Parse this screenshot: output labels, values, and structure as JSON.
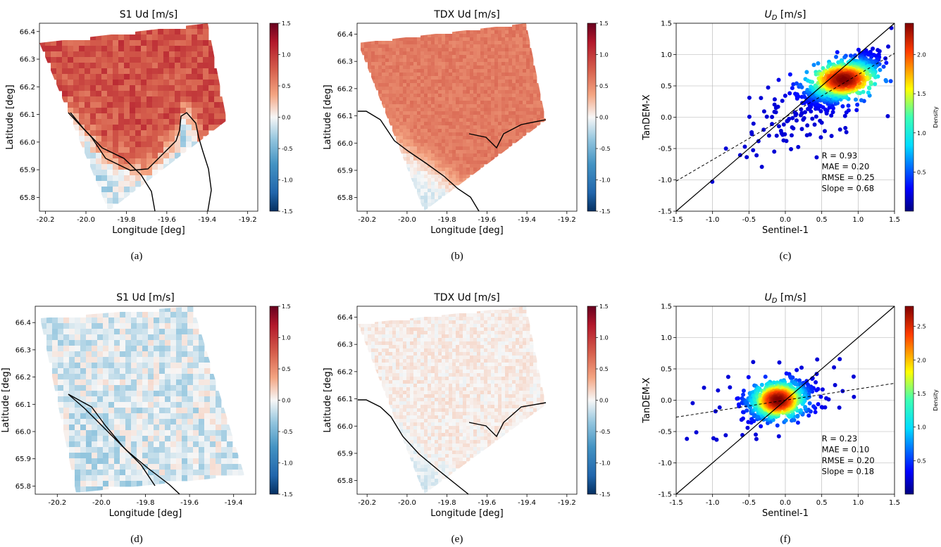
{
  "figure": {
    "captions": [
      "(a)",
      "(b)",
      "(c)",
      "(d)",
      "(e)",
      "(f)"
    ]
  },
  "colors": {
    "diverging_low": "#053061",
    "diverging_mid": "#f7f7f7",
    "diverging_high": "#67001f",
    "coastline": "#000000",
    "density_colormap": "jet"
  },
  "chart_data": [
    {
      "id": "a",
      "type": "heatmap",
      "title": "S1 Ud [m/s]",
      "xlabel": "Longitude [deg]",
      "ylabel": "Latitude [deg]",
      "xlim": [
        -20.23,
        -19.15
      ],
      "ylim": [
        65.75,
        66.43
      ],
      "xticks": [
        "-20.2",
        "-20.0",
        "-19.8",
        "-19.6",
        "-19.4",
        "-19.2"
      ],
      "yticks": [
        "65.8",
        "65.9",
        "66.0",
        "66.1",
        "66.2",
        "66.3",
        "66.4"
      ],
      "colorbar": {
        "range": [
          -1.5,
          1.5
        ],
        "ticks": [
          "1.5",
          "1.0",
          "0.5",
          "0.0",
          "-0.5",
          "-1.0",
          "-1.5"
        ]
      },
      "field": {
        "offshore_mean": 0.85,
        "nearshore_mean": -0.2,
        "texture": "coarse"
      }
    },
    {
      "id": "b",
      "type": "heatmap",
      "title": "TDX Ud [m/s]",
      "xlabel": "Longitude [deg]",
      "ylabel": "Latitude [deg]",
      "xlim": [
        -20.25,
        -19.15
      ],
      "ylim": [
        65.75,
        66.44
      ],
      "xticks": [
        "-20.2",
        "-20.0",
        "-19.8",
        "-19.6",
        "-19.4",
        "-19.2"
      ],
      "yticks": [
        "65.8",
        "65.9",
        "66.0",
        "66.1",
        "66.2",
        "66.3",
        "66.4"
      ],
      "colorbar": {
        "range": [
          -1.5,
          1.5
        ],
        "ticks": [
          "1.5",
          "1.0",
          "0.5",
          "0.0",
          "-0.5",
          "-1.0",
          "-1.5"
        ]
      },
      "field": {
        "offshore_mean": 0.6,
        "nearshore_mean": -0.1,
        "texture": "fine"
      }
    },
    {
      "id": "c",
      "type": "scatter",
      "title": "U",
      "title_sub": "D",
      "title_rest": " [m/s]",
      "xlabel": "Sentinel-1",
      "ylabel": "TanDEM-X",
      "xlim": [
        -1.5,
        1.5
      ],
      "ylim": [
        -1.5,
        1.5
      ],
      "xticks": [
        "-1.5",
        "-1.0",
        "-0.5",
        "0.0",
        "0.5",
        "1.0",
        "1.5"
      ],
      "yticks": [
        "-1.5",
        "-1.0",
        "-0.5",
        "0.0",
        "0.5",
        "1.0",
        "1.5"
      ],
      "colorbar": {
        "label": "Density",
        "max": 2.4,
        "ticks": [
          "2.0",
          "1.5",
          "1.0",
          "0.5"
        ]
      },
      "stats": [
        "R = 0.93",
        "MAE  = 0.20",
        "RMSE = 0.25",
        "Slope = 0.68"
      ],
      "fit": {
        "slope": 0.68,
        "intercept": 0.0
      },
      "cluster": {
        "center": [
          0.8,
          0.6
        ],
        "spread_along": 0.28,
        "spread_across": 0.12
      }
    },
    {
      "id": "d",
      "type": "heatmap",
      "title": "S1 Ud [m/s]",
      "xlabel": "Longitude [deg]",
      "ylabel": "Latitude [deg]",
      "xlim": [
        -20.3,
        -19.3
      ],
      "ylim": [
        65.77,
        66.46
      ],
      "xticks": [
        "-20.2",
        "-20.0",
        "-19.8",
        "-19.6",
        "-19.4"
      ],
      "yticks": [
        "65.8",
        "65.9",
        "66.0",
        "66.1",
        "66.2",
        "66.3",
        "66.4"
      ],
      "colorbar": {
        "range": [
          -1.5,
          1.5
        ],
        "ticks": [
          "1.5",
          "1.0",
          "0.5",
          "0.0",
          "-0.5",
          "-1.0",
          "-1.5"
        ]
      },
      "field": {
        "offshore_mean": -0.1,
        "nearshore_mean": -0.15,
        "texture": "coarse"
      }
    },
    {
      "id": "e",
      "type": "heatmap",
      "title": "TDX Ud [m/s]",
      "xlabel": "Longitude [deg]",
      "ylabel": "Latitude [deg]",
      "xlim": [
        -20.25,
        -19.15
      ],
      "ylim": [
        65.75,
        66.44
      ],
      "xticks": [
        "-20.2",
        "-20.0",
        "-19.8",
        "-19.6",
        "-19.4",
        "-19.2"
      ],
      "yticks": [
        "65.8",
        "65.9",
        "66.0",
        "66.1",
        "66.2",
        "66.3",
        "66.4"
      ],
      "colorbar": {
        "range": [
          -1.5,
          1.5
        ],
        "ticks": [
          "1.5",
          "1.0",
          "0.5",
          "0.0",
          "-0.5",
          "-1.0",
          "-1.5"
        ]
      },
      "field": {
        "offshore_mean": 0.05,
        "nearshore_mean": -0.1,
        "texture": "fine"
      }
    },
    {
      "id": "f",
      "type": "scatter",
      "title": "U",
      "title_sub": "D",
      "title_rest": " [m/s]",
      "xlabel": "Sentinel-1",
      "ylabel": "TanDEM-X",
      "xlim": [
        -1.5,
        1.5
      ],
      "ylim": [
        -1.5,
        1.5
      ],
      "xticks": [
        "-1.5",
        "-1.0",
        "-0.5",
        "0.0",
        "0.5",
        "1.0",
        "1.5"
      ],
      "yticks": [
        "-1.5",
        "-1.0",
        "-0.5",
        "0.0",
        "0.5",
        "1.0",
        "1.5"
      ],
      "colorbar": {
        "label": "Density",
        "max": 2.8,
        "ticks": [
          "2.5",
          "2.0",
          "1.5",
          "1.0",
          "0.5"
        ]
      },
      "stats": [
        "R = 0.23",
        "MAE  = 0.10",
        "RMSE = 0.20",
        "Slope = 0.18"
      ],
      "fit": {
        "slope": 0.18,
        "intercept": 0.0
      },
      "cluster": {
        "center": [
          -0.1,
          0.0
        ],
        "spread_along": 0.2,
        "spread_across": 0.12
      }
    }
  ]
}
